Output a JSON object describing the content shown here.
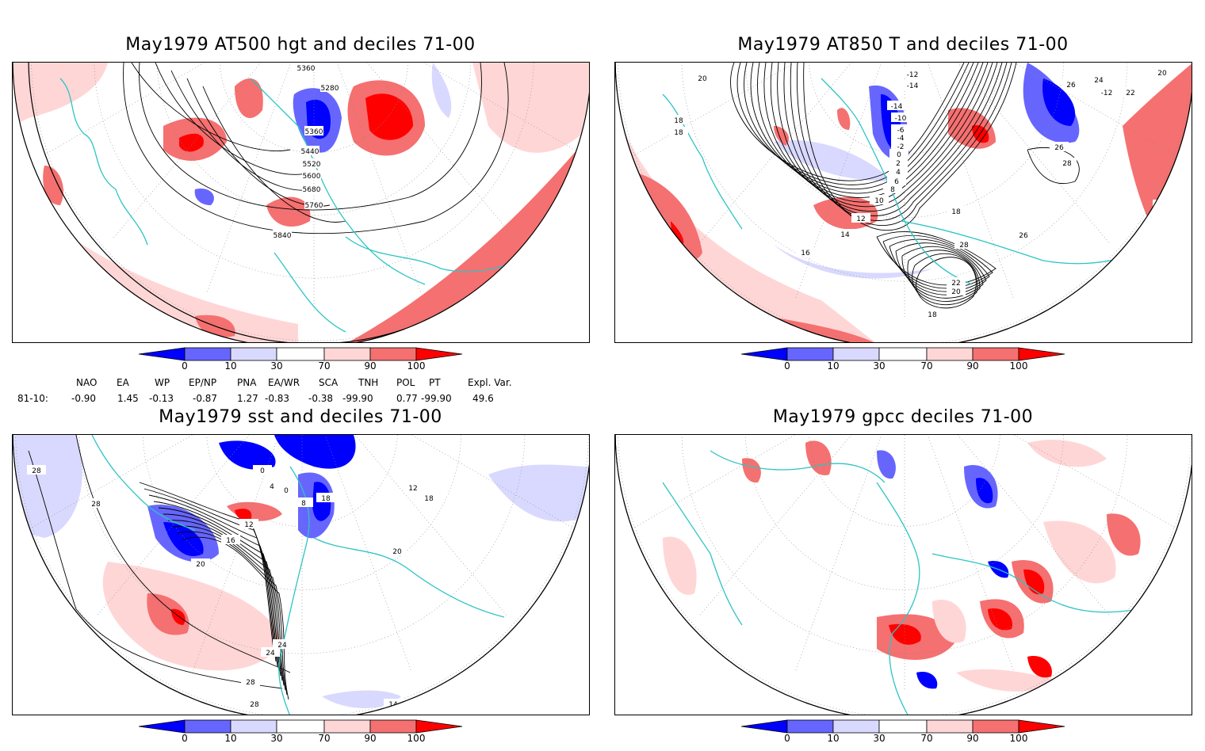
{
  "panels": {
    "hgt": {
      "title": "May1979 AT500 hgt and deciles 71-00",
      "contours": [
        "5360",
        "5280",
        "5360",
        "5440",
        "5520",
        "5600",
        "5680",
        "5760",
        "5840"
      ]
    },
    "t850": {
      "title": "May1979 AT850 T and deciles 71-00",
      "contours": [
        "20",
        "18",
        "18",
        "16",
        "14",
        "12",
        "10",
        "8",
        "6",
        "4",
        "2",
        "0",
        "-2",
        "-4",
        "-6",
        "-10",
        "-12",
        "-14",
        "-14",
        "-12",
        "18",
        "20",
        "26",
        "24",
        "22",
        "26",
        "28",
        "18",
        "28",
        "20",
        "22",
        "18",
        "26",
        "18"
      ]
    },
    "sst": {
      "title": "May1979 sst and deciles 71-00",
      "contours": [
        "28",
        "28",
        "24",
        "0",
        "4",
        "0",
        "8",
        "12",
        "16",
        "20",
        "24",
        "28",
        "28",
        "12",
        "18",
        "20",
        "14",
        "18"
      ]
    },
    "gpcc": {
      "title": "May1979 gpcc deciles 71-00",
      "contours": []
    }
  },
  "colorbar": {
    "ticks": [
      "0",
      "10",
      "30",
      "70",
      "90",
      "100"
    ],
    "colors": [
      "#0000ff",
      "#6666ff",
      "#d9d9ff",
      "#ffffff",
      "#ffd6d6",
      "#f57070",
      "#ff0000"
    ]
  },
  "indices": {
    "row_label": "81-10:",
    "names": [
      "NAO",
      "EA",
      "WP",
      "EP/NP",
      "PNA",
      "EA/WR",
      "SCA",
      "TNH",
      "POL",
      "PT",
      "Expl. Var."
    ],
    "values": [
      "-0.90",
      "1.45",
      "-0.13",
      "-0.87",
      "1.27",
      "-0.83",
      "-0.38",
      "-99.90",
      "0.77",
      "-99.90",
      "49.6"
    ]
  },
  "map_colors": {
    "coast": "#2ec4c4",
    "grid": "#888888"
  }
}
